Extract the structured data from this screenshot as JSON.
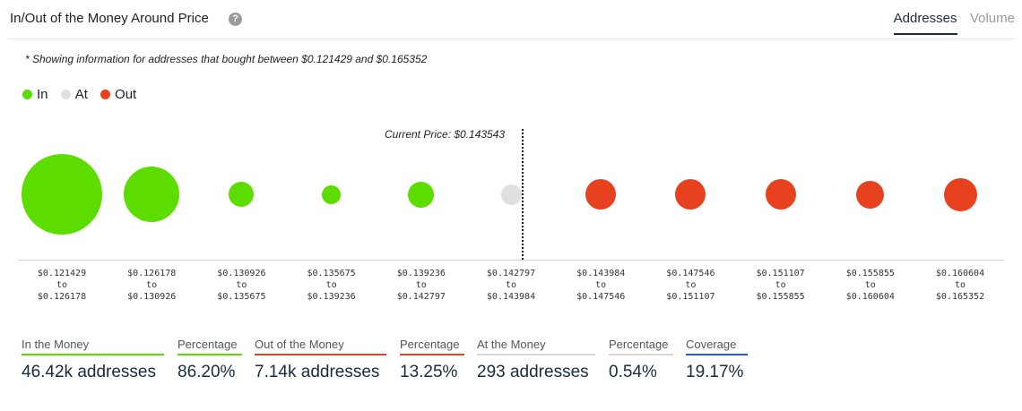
{
  "header": {
    "title": "In/Out of the Money Around Price",
    "help_icon": "?",
    "tabs": [
      {
        "label": "Addresses",
        "active": true
      },
      {
        "label": "Volume",
        "active": false
      }
    ]
  },
  "note": "* Showing information for addresses that bought between $0.121429 and $0.165352",
  "legend": [
    {
      "label": "In",
      "color": "#5ddc00"
    },
    {
      "label": "At",
      "color": "#e0e0e0"
    },
    {
      "label": "Out",
      "color": "#e8411f"
    }
  ],
  "current_price_label": "Current Price: $0.143543",
  "chart_data": {
    "type": "scatter",
    "current_price": 0.143543,
    "categories": [
      {
        "low": "$0.121429",
        "to": "to",
        "high": "$0.126178",
        "status": "In",
        "relative_size": 1.0
      },
      {
        "low": "$0.126178",
        "to": "to",
        "high": "$0.130926",
        "status": "In",
        "relative_size": 0.69
      },
      {
        "low": "$0.130926",
        "to": "to",
        "high": "$0.135675",
        "status": "In",
        "relative_size": 0.31
      },
      {
        "low": "$0.135675",
        "to": "to",
        "high": "$0.139236",
        "status": "In",
        "relative_size": 0.23
      },
      {
        "low": "$0.139236",
        "to": "to",
        "high": "$0.142797",
        "status": "In",
        "relative_size": 0.32
      },
      {
        "low": "$0.142797",
        "to": "to",
        "high": "$0.143984",
        "status": "At",
        "relative_size": 0.25
      },
      {
        "low": "$0.143984",
        "to": "to",
        "high": "$0.147546",
        "status": "Out",
        "relative_size": 0.38
      },
      {
        "low": "$0.147546",
        "to": "to",
        "high": "$0.151107",
        "status": "Out",
        "relative_size": 0.38
      },
      {
        "low": "$0.151107",
        "to": "to",
        "high": "$0.155855",
        "status": "Out",
        "relative_size": 0.38
      },
      {
        "low": "$0.155855",
        "to": "to",
        "high": "$0.160604",
        "status": "Out",
        "relative_size": 0.35
      },
      {
        "low": "$0.160604",
        "to": "to",
        "high": "$0.165352",
        "status": "Out",
        "relative_size": 0.41
      }
    ]
  },
  "stats": [
    {
      "label": "In the Money",
      "value": "46.42k addresses",
      "color": "#5ddc00"
    },
    {
      "label": "Percentage",
      "value": "86.20%",
      "color": "#5ddc00"
    },
    {
      "label": "Out of the Money",
      "value": "7.14k addresses",
      "color": "#e8411f"
    },
    {
      "label": "Percentage",
      "value": "13.25%",
      "color": "#e8411f"
    },
    {
      "label": "At the Money",
      "value": "293 addresses",
      "color": "#d5d5d5"
    },
    {
      "label": "Percentage",
      "value": "0.54%",
      "color": "#d5d5d5"
    },
    {
      "label": "Coverage",
      "value": "19.17%",
      "color": "#1d5fd6"
    }
  ]
}
